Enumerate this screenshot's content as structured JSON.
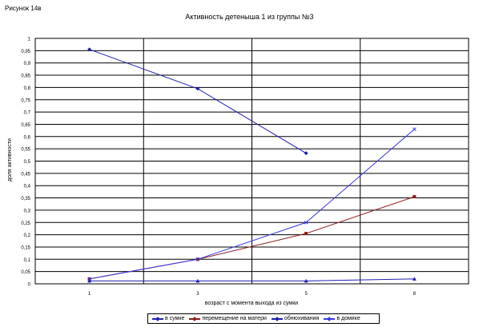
{
  "figure_label": "Рисунок 14в",
  "chart_data": {
    "type": "line",
    "title": "Активность детеныша 1 из группы №3",
    "xlabel": "возраст с момента выхода из сумки",
    "ylabel": "доля активности",
    "categories": [
      "1",
      "3",
      "5",
      "8"
    ],
    "ylim": [
      0,
      1
    ],
    "yticks": [
      "0",
      "0,05",
      "0,1",
      "0,15",
      "0,2",
      "0,25",
      "0,3",
      "0,35",
      "0,4",
      "0,45",
      "0,5",
      "0,55",
      "0,6",
      "0,65",
      "0,7",
      "0,75",
      "0,8",
      "0,85",
      "0,9",
      "0,95",
      "1"
    ],
    "grid": true,
    "legend_position": "bottom",
    "series": [
      {
        "name": "в сумке",
        "color": "#1f1fb4",
        "marker": "diamond",
        "values": [
          0.955,
          0.795,
          0.532,
          null
        ]
      },
      {
        "name": "перемещение на матери",
        "color": "#8b1a1a",
        "marker": "square",
        "values": [
          0.02,
          0.1,
          0.205,
          0.355
        ]
      },
      {
        "name": "обнюхивания",
        "color": "#1f1fb4",
        "marker": "triangle",
        "values": [
          0.012,
          0.012,
          0.012,
          0.02
        ]
      },
      {
        "name": "в домике",
        "color": "#3a3ae6",
        "marker": "x",
        "values": [
          0.02,
          0.1,
          0.25,
          0.63
        ]
      }
    ]
  }
}
